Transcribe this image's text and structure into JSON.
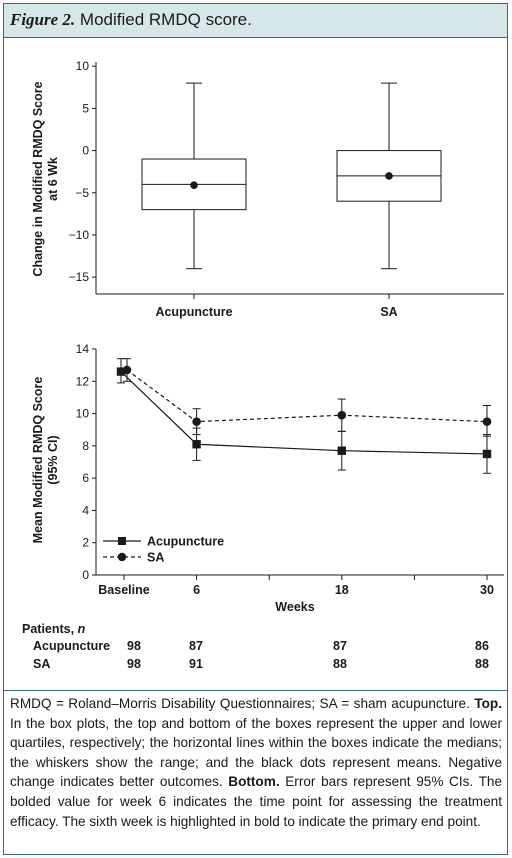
{
  "figure": {
    "label": "Figure 2.",
    "title": "Modified RMDQ score."
  },
  "chart_data": [
    {
      "type": "box",
      "ylabel_line1": "Change in Modified RMDQ Score",
      "ylabel_line2": "at 6 Wk",
      "ylim": [
        -17,
        10.5
      ],
      "yticks": [
        10,
        5,
        0,
        -5,
        -10,
        -15
      ],
      "ytick_labels": [
        "10",
        "5",
        "0",
        "−5",
        "−10",
        "−15"
      ],
      "categories": [
        "Acupuncture",
        "SA"
      ],
      "boxes": [
        {
          "name": "Acupuncture",
          "min": -14,
          "q1": -7,
          "median": -4,
          "q3": -1,
          "max": 8,
          "mean": -4.1
        },
        {
          "name": "SA",
          "min": -14,
          "q1": -6,
          "median": -3,
          "q3": 0,
          "max": 8,
          "mean": -3
        }
      ]
    },
    {
      "type": "line",
      "xlabel": "Weeks",
      "ylabel_line1": "Mean Modified RMDQ Score",
      "ylabel_line2": "(95% CI)",
      "ylim": [
        0,
        14
      ],
      "yticks": [
        0,
        2,
        4,
        6,
        8,
        10,
        12,
        14
      ],
      "ytick_labels": [
        "0",
        "2",
        "4",
        "6",
        "8",
        "10",
        "12",
        "14"
      ],
      "x_categories": [
        "Baseline",
        "6",
        "18",
        "30"
      ],
      "x_week_values": [
        0,
        6,
        18,
        30
      ],
      "bold_x": "6",
      "legend_position": "bottom-left",
      "series": [
        {
          "name": "Acupuncture",
          "marker": "square",
          "line": "solid",
          "values": [
            12.6,
            8.1,
            7.7,
            7.5
          ],
          "ci_low": [
            11.9,
            7.1,
            6.5,
            6.3
          ],
          "ci_high": [
            13.4,
            9.1,
            8.9,
            8.7
          ]
        },
        {
          "name": "SA",
          "marker": "circle",
          "line": "dashed",
          "values": [
            12.7,
            9.5,
            9.9,
            9.5
          ],
          "ci_low": [
            12.0,
            8.7,
            8.9,
            8.6
          ],
          "ci_high": [
            13.4,
            10.3,
            10.9,
            10.5
          ]
        }
      ]
    }
  ],
  "patients": {
    "header": "Patients, ",
    "header_n": "n",
    "rows": [
      {
        "label": "Acupuncture",
        "counts": [
          "98",
          "87",
          "87",
          "86"
        ]
      },
      {
        "label": "SA",
        "counts": [
          "98",
          "91",
          "88",
          "88"
        ]
      }
    ]
  },
  "caption": {
    "abbrev": "RMDQ = Roland–Morris Disability Questionnaires; SA = sham acupuncture.",
    "top_label": "Top.",
    "top_text": "In the box plots, the top and bottom of the boxes represent the upper and lower quartiles, respectively; the horizontal lines within the boxes indicate the medians; the whiskers show the range; and the black dots represent means. Negative change indicates better outcomes.",
    "bottom_label": "Bottom.",
    "bottom_text": "Error bars represent 95% CIs. The bolded value for week 6 indicates the time point for assessing the treatment efficacy. The sixth week is highlighted in bold to indicate the primary end point."
  },
  "colors": {
    "frame": "#2f6f7f",
    "title_background": "#d6e7ea",
    "ink": "#1a1a1a"
  }
}
